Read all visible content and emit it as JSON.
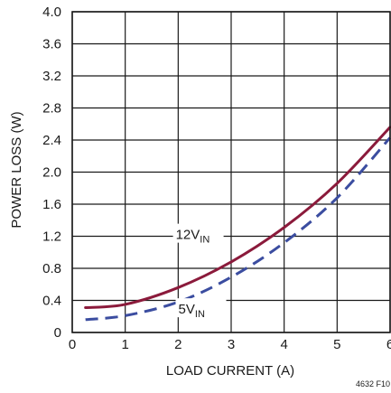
{
  "chart_data": {
    "type": "line",
    "title": "",
    "xlabel": "LOAD CURRENT (A)",
    "ylabel": "POWER LOSS (W)",
    "xlim": [
      0,
      6
    ],
    "ylim": [
      0,
      4.0
    ],
    "x_ticks": [
      "0",
      "1",
      "2",
      "3",
      "4",
      "5",
      "6"
    ],
    "y_ticks": [
      "0",
      "0.4",
      "0.8",
      "1.2",
      "1.6",
      "2.0",
      "2.4",
      "2.8",
      "3.2",
      "3.6",
      "4.0"
    ],
    "grid": true,
    "series": [
      {
        "name": "12VIN",
        "label_main": "12V",
        "label_sub": "IN",
        "color": "#8b1a3b",
        "style": "solid",
        "points": [
          [
            0.25,
            0.31
          ],
          [
            1,
            0.35
          ],
          [
            2,
            0.56
          ],
          [
            3,
            0.88
          ],
          [
            4,
            1.31
          ],
          [
            5,
            1.86
          ],
          [
            6,
            2.56
          ]
        ]
      },
      {
        "name": "5VIN",
        "label_main": "5V",
        "label_sub": "IN",
        "color": "#3b4da0",
        "style": "dashed",
        "points": [
          [
            0.25,
            0.16
          ],
          [
            1,
            0.21
          ],
          [
            2,
            0.38
          ],
          [
            3,
            0.69
          ],
          [
            4,
            1.12
          ],
          [
            5,
            1.68
          ],
          [
            6,
            2.43
          ]
        ]
      }
    ],
    "annotations": [
      "4632 F10"
    ]
  }
}
